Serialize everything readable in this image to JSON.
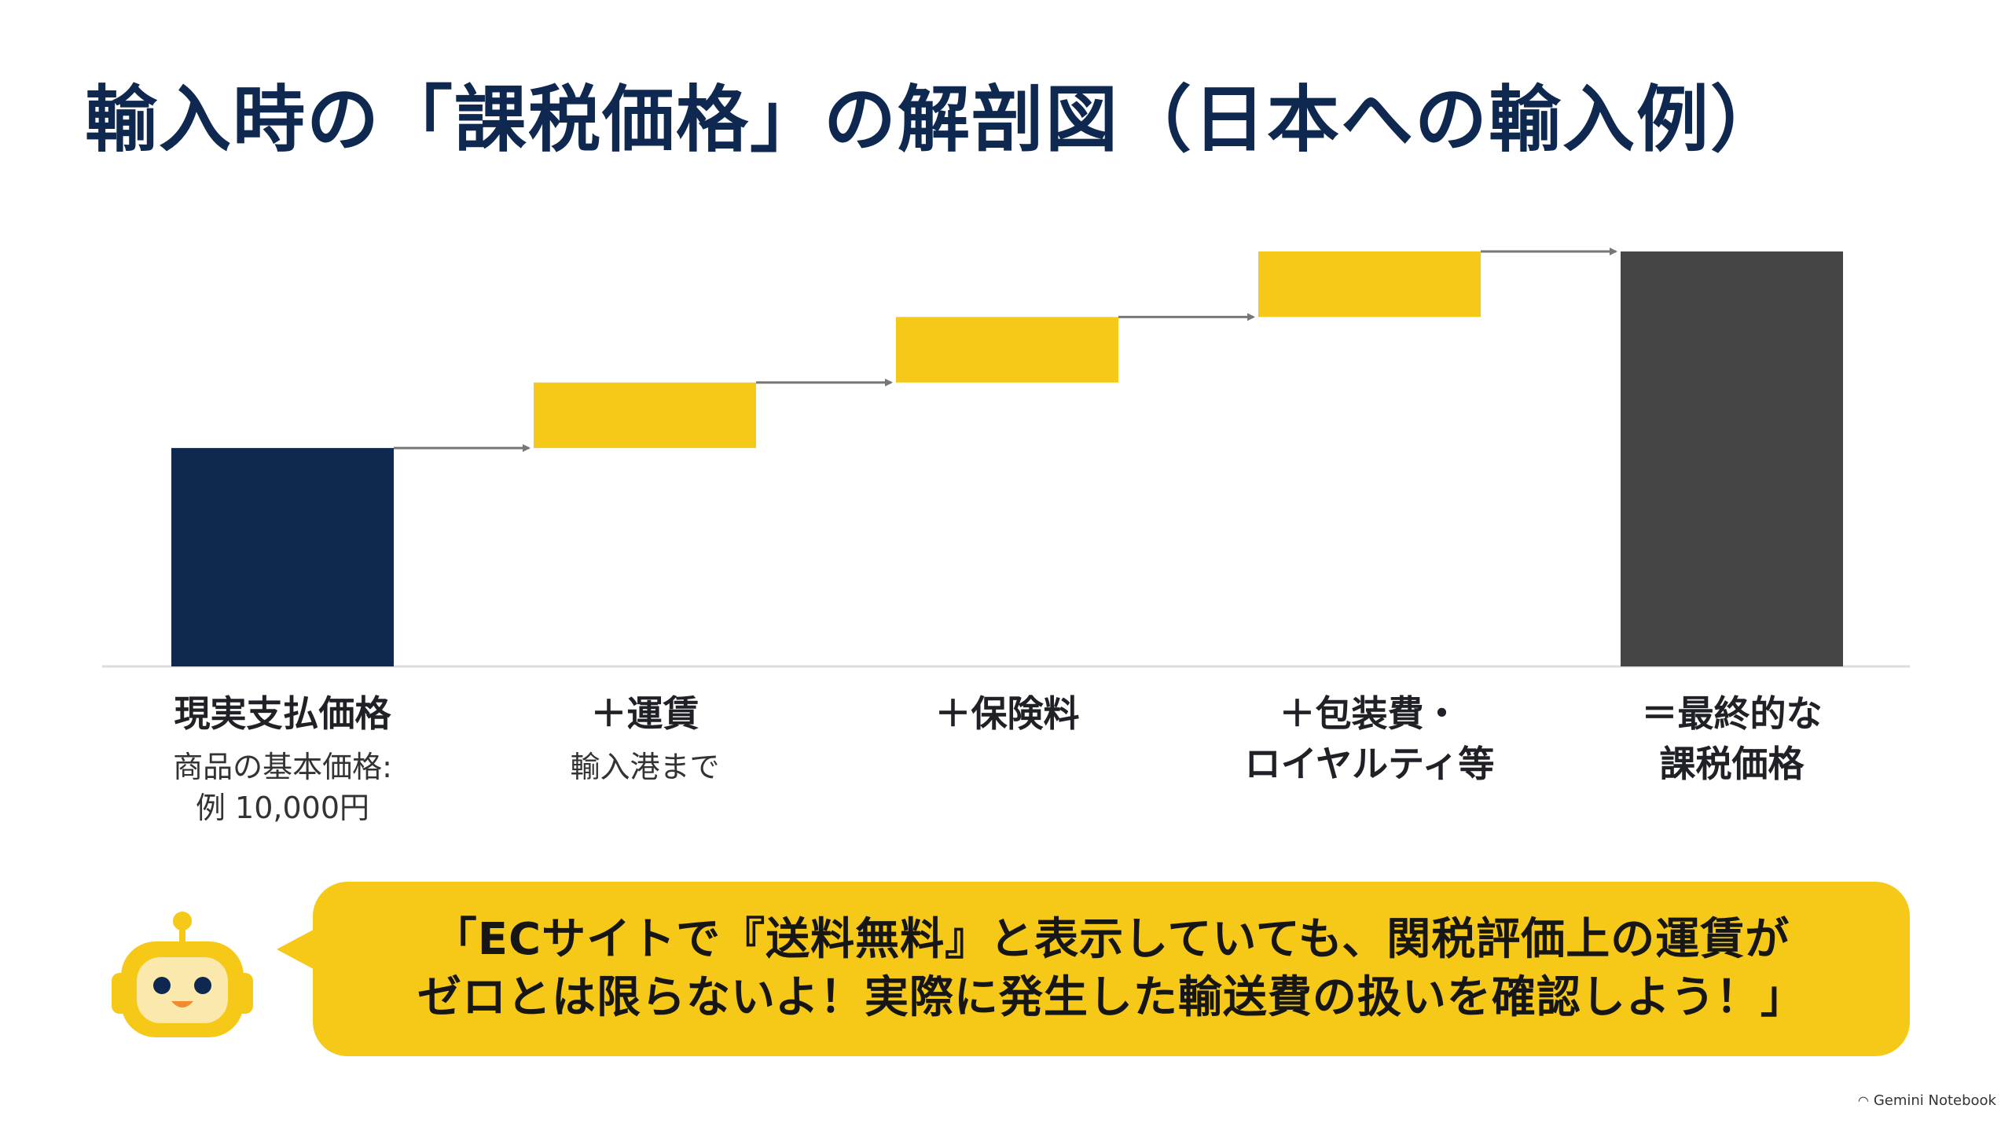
{
  "title": "輸入時の「課税価格」の解剖図（日本への輸入例）",
  "chart_data": {
    "type": "bar",
    "subtype": "waterfall",
    "categories": [
      {
        "label": "現実支払価格",
        "sub": "商品の基本価格:\n例 10,000円",
        "kind": "base",
        "start": 0,
        "value": 1
      },
      {
        "label": "＋運賃",
        "sub": "輸入港まで",
        "kind": "increment",
        "start": 1,
        "value": 0.3
      },
      {
        "label": "＋保険料",
        "sub": "",
        "kind": "increment",
        "start": 1.3,
        "value": 0.3
      },
      {
        "label": "＋包装費・\nロイヤルティ等",
        "sub": "",
        "kind": "increment",
        "start": 1.6,
        "value": 0.3
      },
      {
        "label": "＝最終的な\n課税価格",
        "sub": "",
        "kind": "total",
        "start": 0,
        "value": 1.9
      }
    ],
    "colors": {
      "base": "#0f2850",
      "increment": "#f6c818",
      "total": "#454545",
      "connector": "#777777"
    },
    "ylim": [
      0,
      1.9
    ],
    "axis_visible": false,
    "grid": false
  },
  "bubble": {
    "text": "「ECサイトで『送料無料』と表示していても、関税評価上の運賃が\nゼロとは限らないよ！実際に発生した輸送費の扱いを確認しよう！」"
  },
  "mascot": {
    "icon": "robot-icon"
  },
  "brand": {
    "text": "Gemini Notebook",
    "icon": "gemini-logo-icon"
  }
}
